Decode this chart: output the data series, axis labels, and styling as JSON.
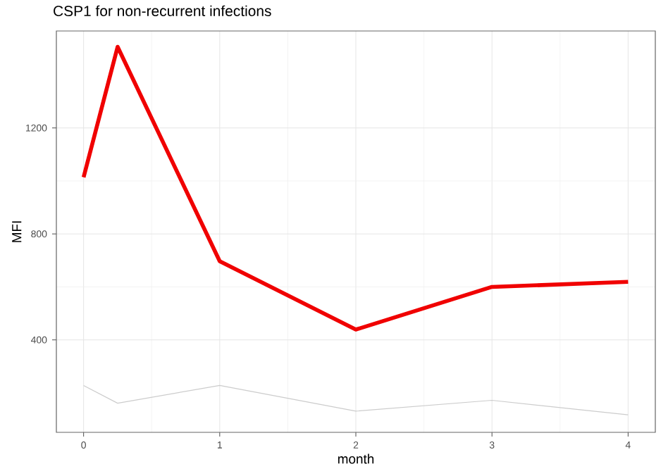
{
  "chart_data": {
    "type": "line",
    "title": "CSP1 for non-recurrent infections",
    "xlabel": "month",
    "ylabel": "MFI",
    "x": [
      0,
      0.25,
      1,
      2,
      3,
      4
    ],
    "series": [
      {
        "color": "#f00000",
        "values": [
          1014,
          1506,
          697,
          439,
          600,
          619
        ]
      },
      {
        "color": "#cccccc",
        "values": [
          228,
          161,
          228,
          131,
          172,
          117
        ]
      }
    ],
    "xlim": [
      -0.2,
      4.2
    ],
    "ylim": [
      51,
      1566
    ],
    "xticks": [
      0,
      1,
      2,
      3,
      4
    ],
    "yticks": [
      400,
      800,
      1200
    ],
    "grid": true,
    "marker": "none",
    "line_style": "solid"
  }
}
